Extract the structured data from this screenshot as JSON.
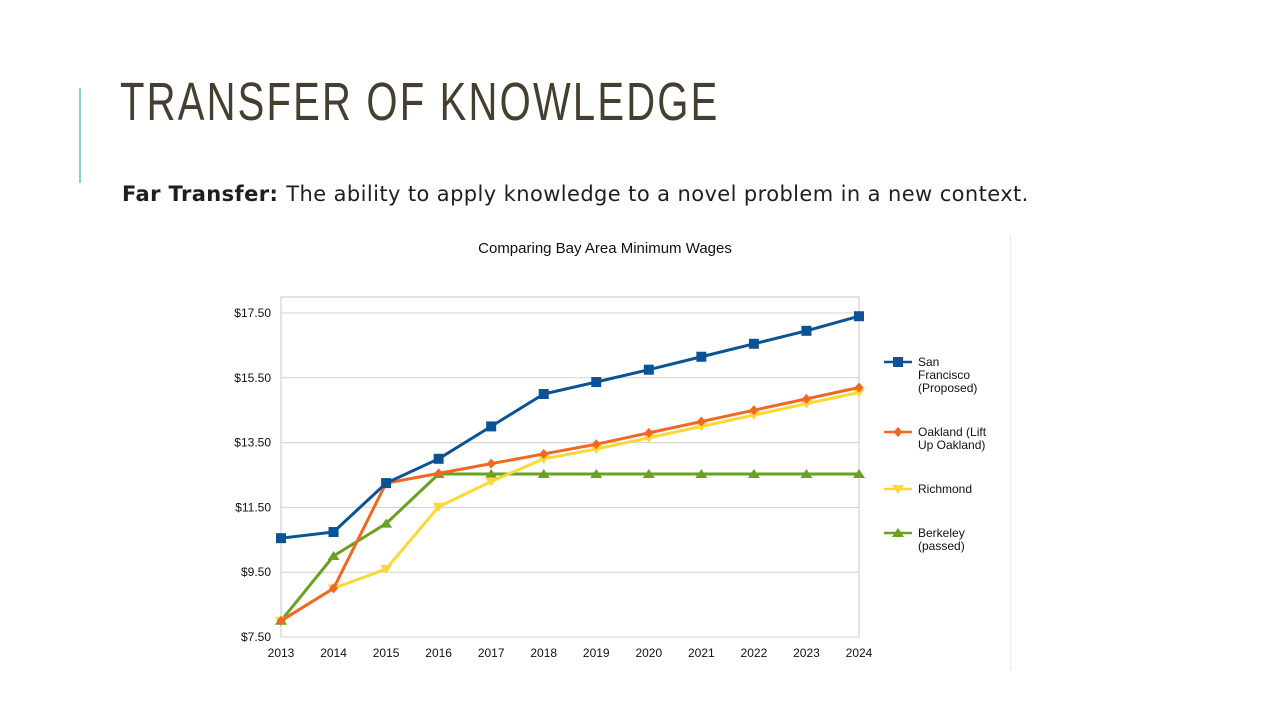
{
  "slide": {
    "title": "TRANSFER OF KNOWLEDGE",
    "term": "Far Transfer:",
    "definition": "The ability to apply knowledge to a novel problem in a new context."
  },
  "colors": {
    "title": "#463f30",
    "accent": "#8fd0cf",
    "grid": "#d0d0d0"
  },
  "chart_data": {
    "type": "line",
    "title": "Comparing Bay Area Minimum Wages",
    "xlabel": "",
    "ylabel": "",
    "x": [
      2013,
      2014,
      2015,
      2016,
      2017,
      2018,
      2019,
      2020,
      2021,
      2022,
      2023,
      2024
    ],
    "ylim": [
      7.5,
      17.5
    ],
    "yticks": [
      7.5,
      9.5,
      11.5,
      13.5,
      15.5,
      17.5
    ],
    "ytick_labels": [
      "$7.50",
      "$9.50",
      "$11.50",
      "$13.50",
      "$15.50",
      "$17.50"
    ],
    "grid": true,
    "legend_position": "right",
    "series": [
      {
        "name": "San Francisco (Proposed)",
        "legend_lines": [
          "San",
          "Francisco",
          "(Proposed)"
        ],
        "color": "#0b5394",
        "marker": "square",
        "values": [
          10.55,
          10.74,
          12.25,
          13.0,
          14.0,
          15.0,
          15.37,
          15.75,
          16.15,
          16.55,
          16.95,
          17.4
        ]
      },
      {
        "name": "Oakland (Lift Up Oakland)",
        "legend_lines": [
          "Oakland (Lift",
          "Up  Oakland)"
        ],
        "color": "#f26722",
        "marker": "diamond",
        "values": [
          8.0,
          9.0,
          12.25,
          12.55,
          12.85,
          13.15,
          13.45,
          13.8,
          14.15,
          14.5,
          14.85,
          15.2
        ]
      },
      {
        "name": "Richmond",
        "legend_lines": [
          "Richmond"
        ],
        "color": "#fdd835",
        "marker": "triangle-down",
        "values": [
          8.0,
          9.0,
          9.6,
          11.52,
          12.3,
          13.0,
          13.3,
          13.65,
          14.0,
          14.35,
          14.7,
          15.05
        ]
      },
      {
        "name": "Berkeley (passed)",
        "legend_lines": [
          "Berkeley",
          "(passed)"
        ],
        "color": "#6aa121",
        "marker": "triangle-up",
        "values": [
          8.0,
          10.0,
          11.0,
          12.53,
          12.53,
          12.53,
          12.53,
          12.53,
          12.53,
          12.53,
          12.53,
          12.53
        ]
      }
    ]
  }
}
